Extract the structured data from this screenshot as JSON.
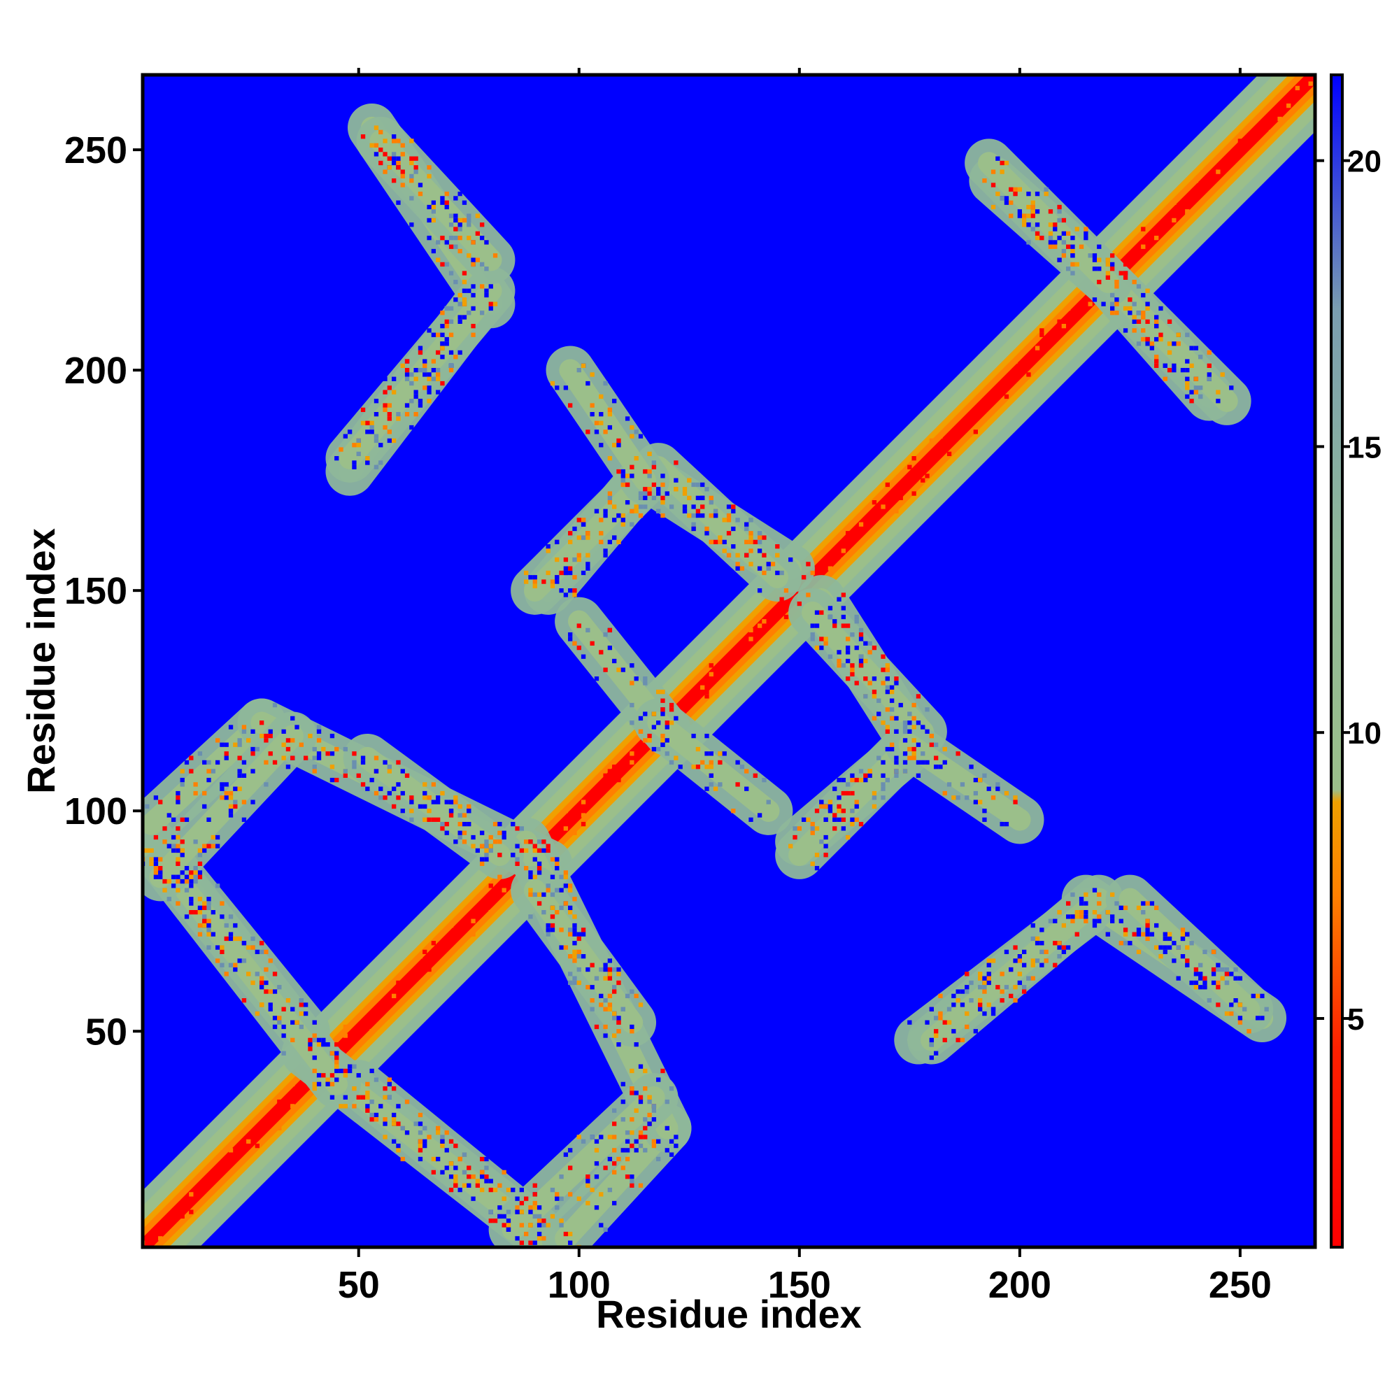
{
  "chart_data": {
    "type": "heatmap",
    "title": "",
    "xlabel": "Residue index",
    "ylabel": "Residue index",
    "xlim": [
      1,
      267
    ],
    "ylim": [
      1,
      267
    ],
    "x_ticks": [
      "50",
      "100",
      "150",
      "200",
      "250"
    ],
    "y_ticks": [
      "50",
      "100",
      "150",
      "200",
      "250"
    ],
    "x_tick_values": [
      50,
      100,
      150,
      200,
      250
    ],
    "y_tick_values": [
      50,
      100,
      150,
      200,
      250
    ],
    "colorbar": {
      "range": [
        1,
        21.5
      ],
      "ticks": [
        "5",
        "10",
        "15",
        "20"
      ],
      "tick_values": [
        5,
        10,
        15,
        20
      ],
      "colors": {
        "low": "#ff0000",
        "mid_low": "#ff8000",
        "mid": "#f0a000",
        "green": "#8fbc8f",
        "steel": "#6a8fb0",
        "high": "#0000ff"
      }
    },
    "background_color": "#0000ff",
    "diagonal_band_width_residues": 14,
    "off_diagonal_bands": [
      {
        "x1": 3,
        "y1": 93,
        "x2": 38,
        "y2": 50
      },
      {
        "x1": 38,
        "y1": 45,
        "x2": 92,
        "y2": 3
      },
      {
        "x1": 3,
        "y1": 97,
        "x2": 28,
        "y2": 120
      },
      {
        "x1": 28,
        "y1": 120,
        "x2": 93,
        "y2": 88
      },
      {
        "x1": 85,
        "y1": 5,
        "x2": 117,
        "y2": 35
      },
      {
        "x1": 90,
        "y1": 82,
        "x2": 112,
        "y2": 52
      },
      {
        "x1": 93,
        "y1": 150,
        "x2": 115,
        "y2": 176
      },
      {
        "x1": 115,
        "y1": 176,
        "x2": 148,
        "y2": 155
      },
      {
        "x1": 100,
        "y1": 143,
        "x2": 120,
        "y2": 118
      },
      {
        "x1": 153,
        "y1": 145,
        "x2": 178,
        "y2": 118
      },
      {
        "x1": 150,
        "y1": 90,
        "x2": 175,
        "y2": 115
      },
      {
        "x1": 175,
        "y1": 115,
        "x2": 200,
        "y2": 98
      },
      {
        "x1": 177,
        "y1": 48,
        "x2": 215,
        "y2": 77
      },
      {
        "x1": 215,
        "y1": 80,
        "x2": 255,
        "y2": 53
      },
      {
        "x1": 48,
        "y1": 180,
        "x2": 80,
        "y2": 218
      },
      {
        "x1": 55,
        "y1": 252,
        "x2": 80,
        "y2": 225
      },
      {
        "x1": 194,
        "y1": 243,
        "x2": 220,
        "y2": 220
      },
      {
        "x1": 220,
        "y1": 220,
        "x2": 247,
        "y2": 193
      }
    ]
  }
}
